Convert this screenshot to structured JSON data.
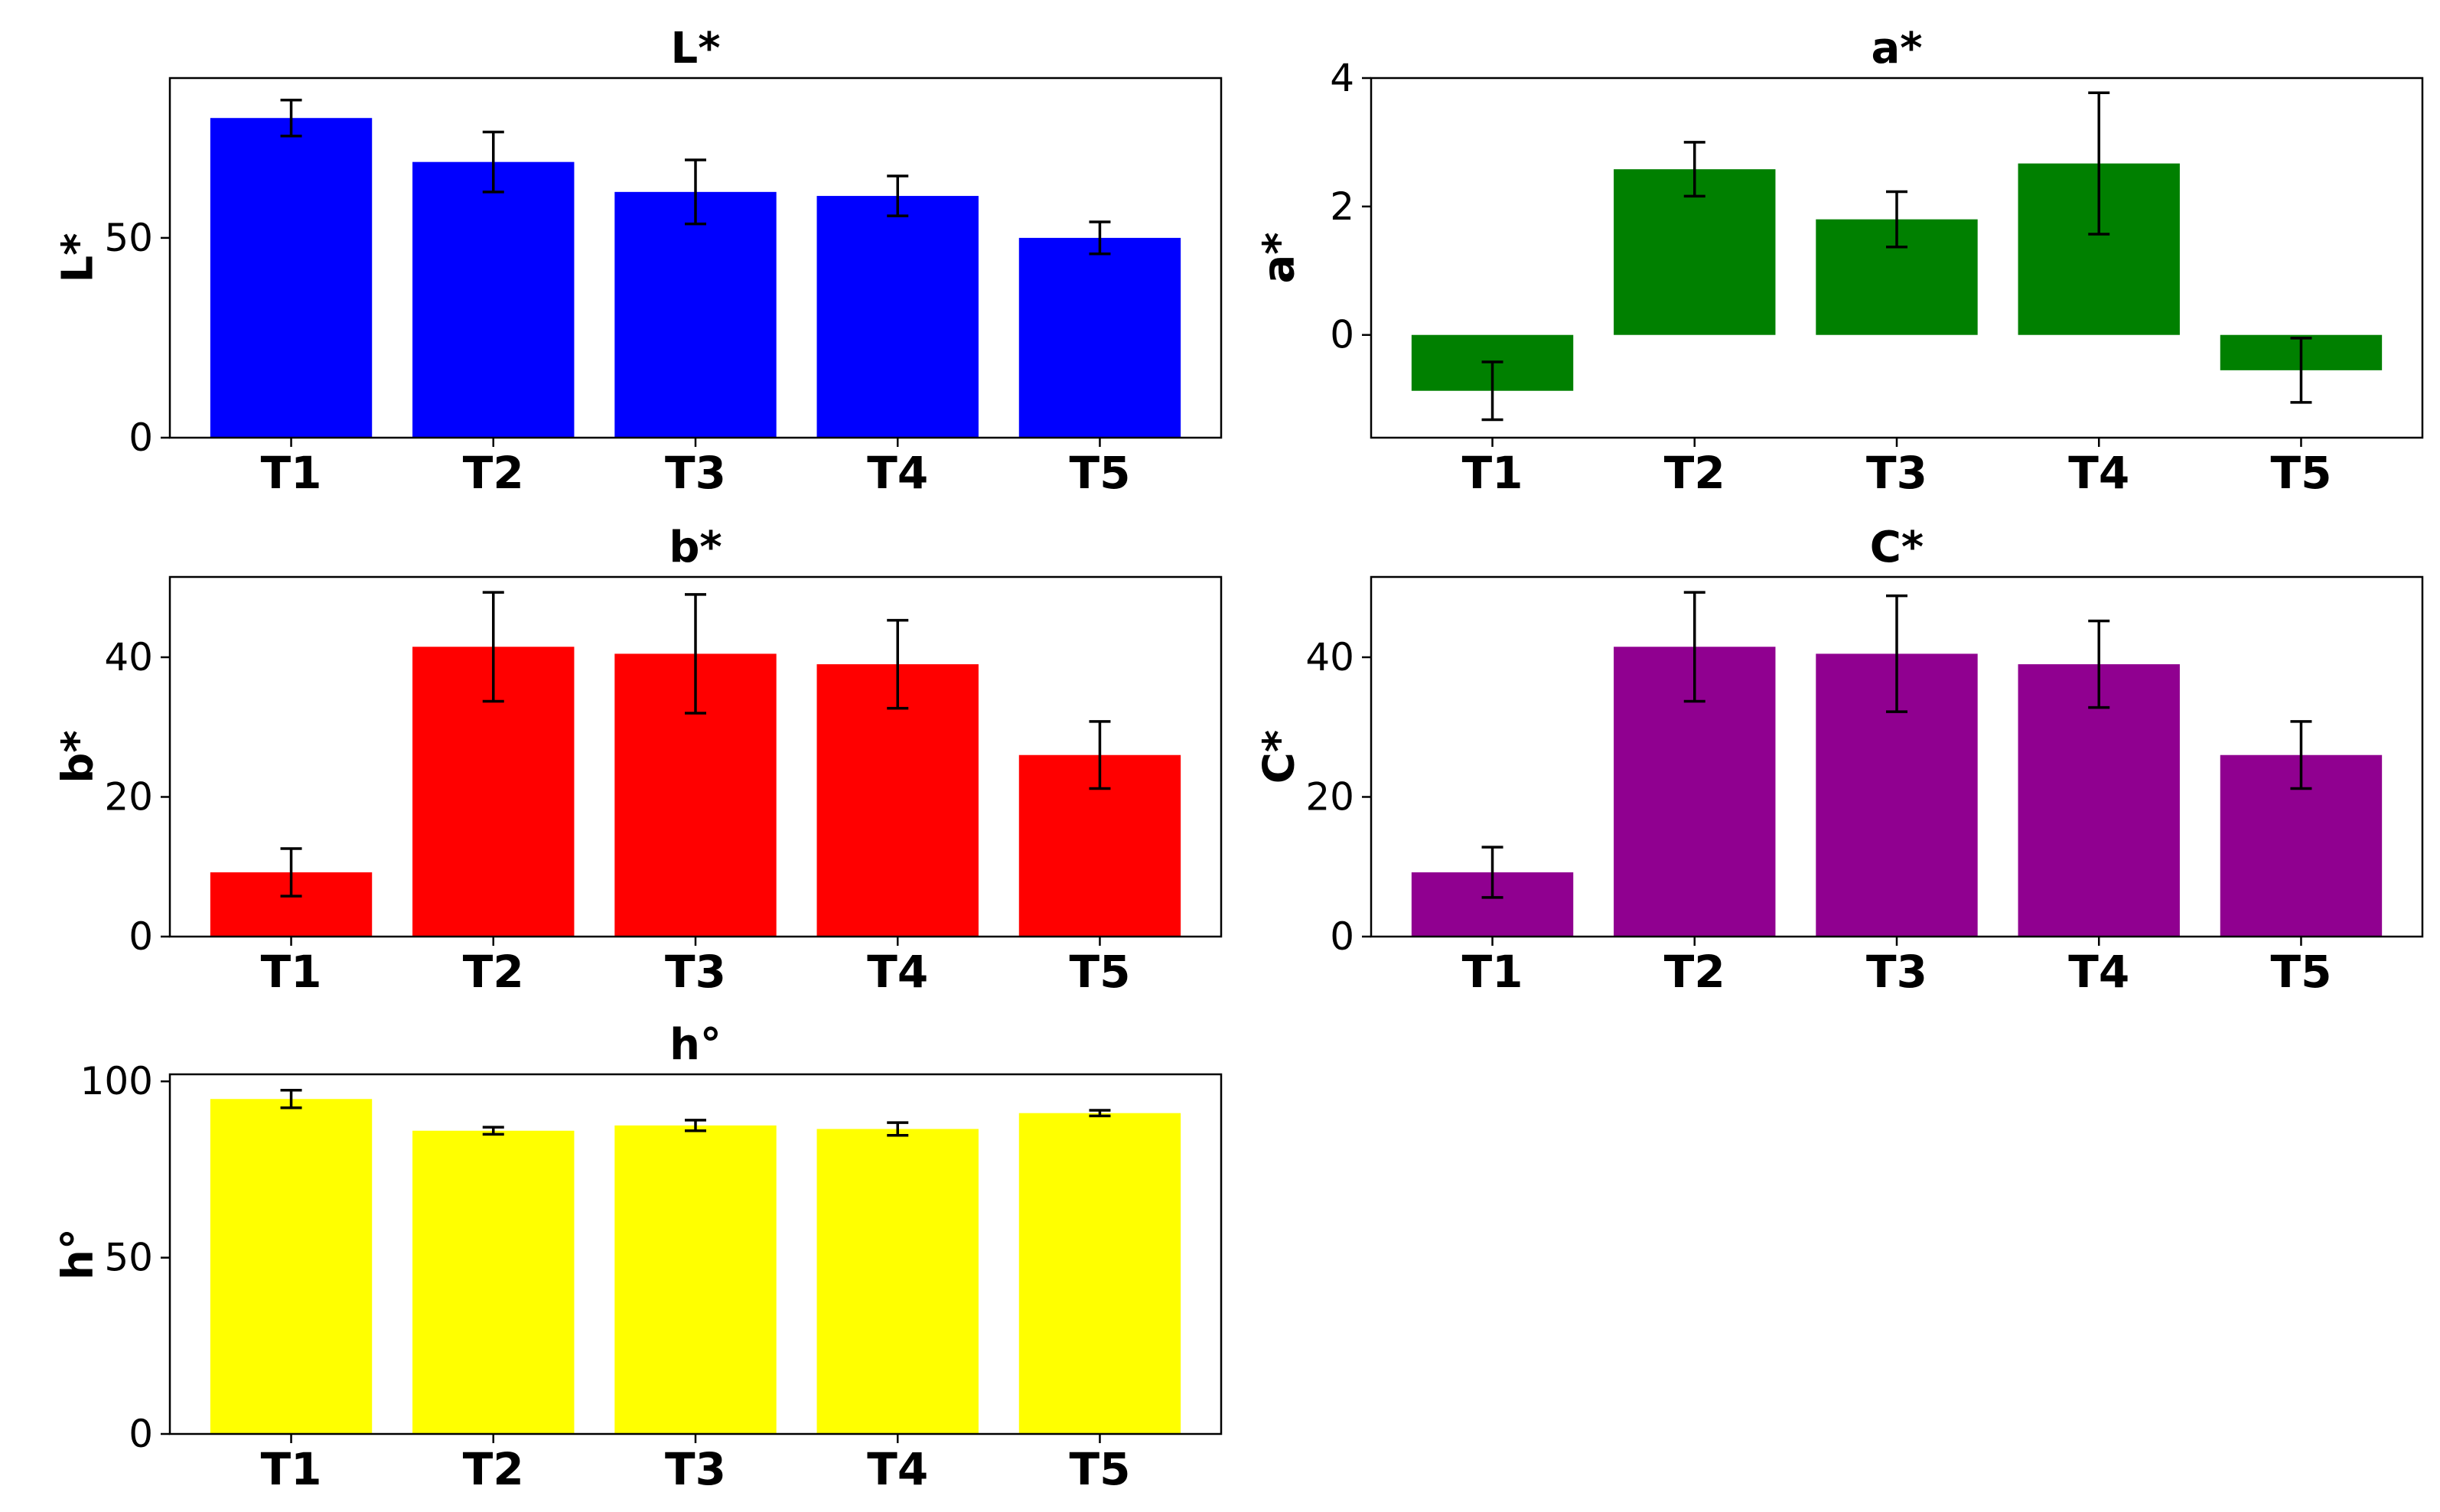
{
  "chart_data": [
    {
      "type": "bar",
      "title": "L*",
      "xlabel": "",
      "ylabel": "L*",
      "categories": [
        "T1",
        "T2",
        "T3",
        "T4",
        "T5"
      ],
      "values": [
        80,
        69,
        61.5,
        60.5,
        50
      ],
      "errors": [
        4.5,
        7.5,
        8,
        5,
        4
      ],
      "ylim": [
        0,
        90
      ],
      "yticks": [
        0,
        50
      ],
      "color": "#0000ff"
    },
    {
      "type": "bar",
      "title": "a*",
      "xlabel": "",
      "ylabel": "a*",
      "categories": [
        "T1",
        "T2",
        "T3",
        "T4",
        "T5"
      ],
      "values": [
        -0.87,
        2.58,
        1.8,
        2.67,
        -0.55
      ],
      "errors": [
        0.45,
        0.42,
        0.43,
        1.1,
        0.5
      ],
      "ylim": [
        -1.6,
        4
      ],
      "yticks": [
        0,
        2,
        4
      ],
      "color": "#008000"
    },
    {
      "type": "bar",
      "title": "b*",
      "xlabel": "",
      "ylabel": "b*",
      "categories": [
        "T1",
        "T2",
        "T3",
        "T4",
        "T5"
      ],
      "values": [
        9.2,
        41.5,
        40.5,
        39,
        26
      ],
      "errors": [
        3.4,
        7.8,
        8.5,
        6.3,
        4.8
      ],
      "ylim": [
        0,
        51.5
      ],
      "yticks": [
        0,
        20,
        40
      ],
      "color": "#ff0000"
    },
    {
      "type": "bar",
      "title": "C*",
      "xlabel": "",
      "ylabel": "C*",
      "categories": [
        "T1",
        "T2",
        "T3",
        "T4",
        "T5"
      ],
      "values": [
        9.2,
        41.5,
        40.5,
        39,
        26
      ],
      "errors": [
        3.6,
        7.8,
        8.3,
        6.2,
        4.8
      ],
      "ylim": [
        0,
        51.5
      ],
      "yticks": [
        0,
        20,
        40
      ],
      "color": "#900090"
    },
    {
      "type": "bar",
      "title": "h°",
      "xlabel": "",
      "ylabel": "h°",
      "categories": [
        "T1",
        "T2",
        "T3",
        "T4",
        "T5"
      ],
      "values": [
        95,
        86,
        87.5,
        86.5,
        91
      ],
      "errors": [
        2.5,
        1,
        1.5,
        1.8,
        0.8
      ],
      "ylim": [
        0,
        102
      ],
      "yticks": [
        0,
        50,
        100
      ],
      "color": "#ffff00"
    }
  ]
}
